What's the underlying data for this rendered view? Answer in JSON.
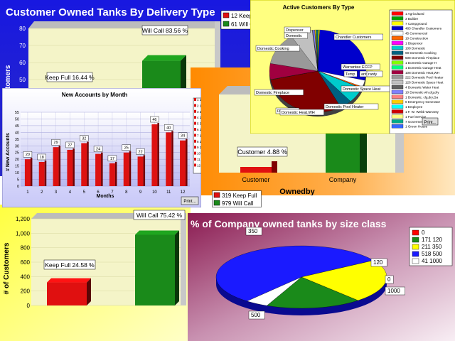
{
  "charts": {
    "delivery": {
      "title": "Customer Owned Tanks By Delivery Type",
      "ylabel": "# of Customers",
      "legend": [
        "12 Keep Full",
        "61 Will Call"
      ],
      "labels": [
        "Keep Full 16.44 %",
        "Will Call 83.56 %"
      ]
    },
    "ownedby": {
      "xlabel": "Ownedby",
      "categories": [
        "Customer",
        "Company"
      ],
      "labels": [
        "Customer 4.88 %"
      ]
    },
    "active": {
      "title": "Active Customers By Type",
      "print": "Print...",
      "legend": [
        "1 Agricultural",
        "3 Builder",
        "7 Campground",
        "483 Chandler Customers",
        "45 Commercial",
        "10 Construction",
        "1 Dispensor",
        "108 Domestic",
        "68 Domestic Cooking",
        "508 Domestic Fireplace",
        "1 Domestic Garage H",
        "1 Domestic Garage Heat",
        "108 Domestic Heat,WH",
        "222 Domestic Pool Heater",
        "126 Domestic Space Heat",
        "4 Domestic Water Heat",
        "10 Domestic wh,clg,dry",
        "1 Domestic, clg,dry,Ga",
        "6 Emergency Generator",
        "1 Employee",
        "1 F. W. Webb Warranty",
        "1 Fuel Service",
        "7 Goverment",
        "1 Green House"
      ],
      "slice_labels": [
        "Dispensor",
        "Domestic",
        "Domestic Cooking",
        "Domestic Fireplace",
        "Domestic",
        "Domestic Heat,WH",
        "Domestic Pool Heater",
        "Domestic Space Heat",
        "Temp",
        "ants",
        "ranty",
        "Warrantee ECFP",
        "Chandler Customers"
      ]
    },
    "newaccounts": {
      "title": "New Accounts by Month",
      "ylabel": "# New Accounts",
      "xlabel": "Months",
      "print": "Print...",
      "legend": [
        "1 20",
        "2 18",
        "3 29",
        "4 27",
        "5 32",
        "6 24",
        "7 17",
        "8 25",
        "9 22",
        "10 46",
        "11 40",
        "12 34"
      ]
    },
    "company": {
      "ylabel": "# of Customers",
      "legend": [
        "319 Keep Full",
        "979 Will Call"
      ],
      "labels": [
        "Keep Full 24.58 %",
        "Will Call 75.42 %"
      ]
    },
    "sizeclass": {
      "title": "% of Company owned tanks by size class",
      "legend": [
        "0",
        "171 120",
        "211 350",
        "518 500",
        "41 1000"
      ],
      "slice_labels": [
        "350",
        "120",
        "0",
        "1000",
        "500"
      ]
    }
  },
  "chart_data": [
    {
      "type": "bar",
      "title": "Customer Owned Tanks By Delivery Type",
      "ylabel": "# of Customers",
      "categories": [
        "Keep Full",
        "Will Call"
      ],
      "values": [
        12,
        61
      ],
      "ylim": [
        0,
        80
      ],
      "yticks": [
        0,
        10,
        20,
        30,
        40,
        50,
        60,
        70,
        80
      ],
      "colors": [
        "#e01010",
        "#1a8a1a"
      ],
      "grid": false,
      "legend": "top-right"
    },
    {
      "type": "bar",
      "xlabel": "Ownedby",
      "categories": [
        "Customer",
        "Company"
      ],
      "values": [
        4.88,
        95.12
      ],
      "colors": [
        "#e01010",
        "#1a8a1a"
      ]
    },
    {
      "type": "pie",
      "title": "Active Customers By Type",
      "categories": [
        "Agricultural",
        "Builder",
        "Campground",
        "Chandler Customers",
        "Commercial",
        "Construction",
        "Dispensor",
        "Domestic",
        "Domestic Cooking",
        "Domestic Fireplace",
        "Domestic Garage H",
        "Domestic Garage Heat",
        "Domestic Heat,WH",
        "Domestic Pool Heater",
        "Domestic Space Heat",
        "Domestic Water Heat",
        "Domestic wh,clg,dry",
        "Domestic, clg,dry,Ga",
        "Emergency Generator",
        "Employee",
        "F. W. Webb Warranty",
        "Fuel Service",
        "Goverment",
        "Green House"
      ],
      "values": [
        1,
        3,
        7,
        483,
        45,
        10,
        1,
        108,
        68,
        508,
        1,
        1,
        108,
        222,
        126,
        4,
        10,
        1,
        6,
        1,
        1,
        1,
        7,
        1
      ],
      "colors": [
        "#ff0000",
        "#00a000",
        "#ffff00",
        "#0000cc",
        "#ffffff",
        "#ff6600",
        "#ff00ff",
        "#00cccc",
        "#006080",
        "#800000",
        "#80ff00",
        "#00ff80",
        "#a00040",
        "#999999",
        "#c0c0c0",
        "#606060",
        "#8080ff",
        "#ff8080",
        "#ffcc00",
        "#00ffff",
        "#cc0000",
        "#ffff80",
        "#00aa88",
        "#3366ff"
      ],
      "legend": "right"
    },
    {
      "type": "bar",
      "title": "New Accounts by Month",
      "xlabel": "Months",
      "ylabel": "# New Accounts",
      "categories": [
        "1",
        "2",
        "3",
        "4",
        "5",
        "6",
        "7",
        "8",
        "9",
        "10",
        "11",
        "12"
      ],
      "values": [
        20,
        18,
        29,
        27,
        32,
        24,
        17,
        25,
        22,
        46,
        40,
        34
      ],
      "ylim": [
        0,
        55
      ],
      "yticks": [
        0,
        5,
        10,
        15,
        20,
        25,
        30,
        35,
        40,
        45,
        50,
        55
      ],
      "colors": [
        "#dd1111"
      ],
      "grid": true,
      "legend": "right"
    },
    {
      "type": "bar",
      "ylabel": "# of Customers",
      "categories": [
        "Keep Full",
        "Will Call"
      ],
      "values": [
        319,
        979
      ],
      "ylim": [
        0,
        1200
      ],
      "yticks": [
        0,
        200,
        400,
        600,
        800,
        1000,
        1200
      ],
      "colors": [
        "#e01010",
        "#1a8a1a"
      ],
      "legend": "top-right"
    },
    {
      "type": "pie",
      "title": "% of Company owned tanks by size class",
      "categories": [
        "0",
        "120",
        "350",
        "500",
        "1000"
      ],
      "values": [
        0,
        171,
        211,
        518,
        41
      ],
      "colors": [
        "#ff0000",
        "#1a8a1a",
        "#ffff00",
        "#1a1aff",
        "#ffffff"
      ],
      "legend": "right"
    }
  ]
}
